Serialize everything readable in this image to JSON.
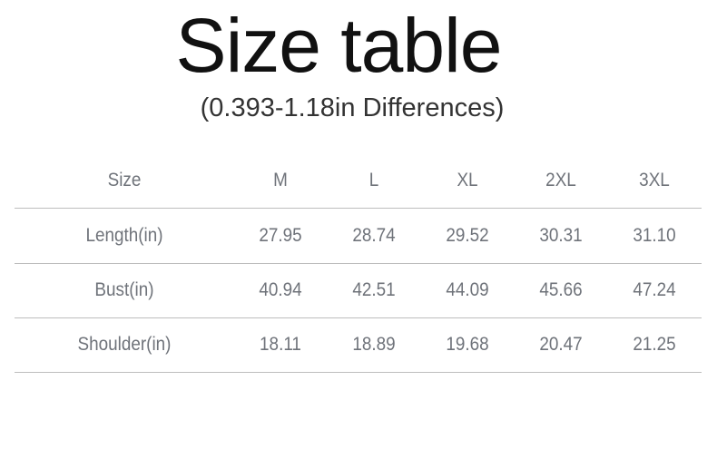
{
  "title": "Size table",
  "subtitle": "(0.393-1.18in Differences)",
  "table": {
    "headers": [
      "Size",
      "M",
      "L",
      "XL",
      "2XL",
      "3XL"
    ],
    "rows": [
      [
        "Length(in)",
        "27.95",
        "28.74",
        "29.52",
        "30.31",
        "31.10"
      ],
      [
        "Bust(in)",
        "40.94",
        "42.51",
        "44.09",
        "45.66",
        "47.24"
      ],
      [
        "Shoulder(in)",
        "18.11",
        "18.89",
        "19.68",
        "20.47",
        "21.25"
      ]
    ]
  }
}
